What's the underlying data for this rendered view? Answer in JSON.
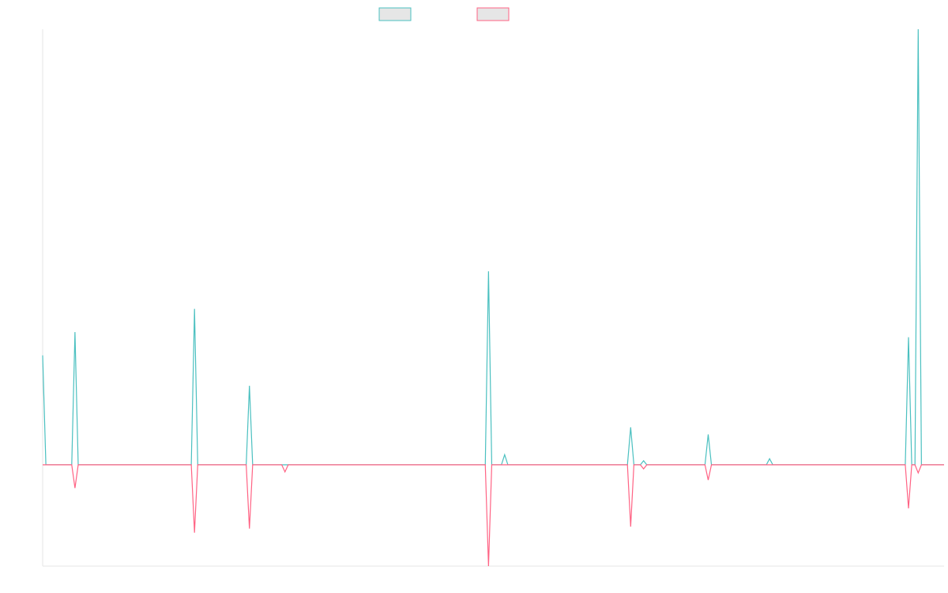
{
  "chart_data": {
    "type": "line",
    "title": "",
    "xlabel": "",
    "ylabel": "",
    "grid": false,
    "legend": "top-center",
    "x_count": 280,
    "ylim": [
      -1.0,
      4.3
    ],
    "series": [
      {
        "color": "#4bc0c0",
        "fill": "#e6e6e6",
        "points": [
          [
            0,
            1.08
          ],
          [
            1,
            0
          ],
          [
            9,
            0
          ],
          [
            10,
            1.31
          ],
          [
            11,
            0
          ],
          [
            46,
            0
          ],
          [
            47,
            1.54
          ],
          [
            48,
            0
          ],
          [
            63,
            0
          ],
          [
            64,
            0.78
          ],
          [
            65,
            0
          ],
          [
            74,
            0
          ],
          [
            75,
            0
          ],
          [
            76,
            0
          ],
          [
            137,
            0
          ],
          [
            138,
            1.91
          ],
          [
            139,
            0
          ],
          [
            142,
            0
          ],
          [
            143,
            0.1
          ],
          [
            144,
            0
          ],
          [
            181,
            0
          ],
          [
            182,
            0.37
          ],
          [
            183,
            0
          ],
          [
            185,
            0
          ],
          [
            186,
            0.04
          ],
          [
            187,
            0
          ],
          [
            205,
            0
          ],
          [
            206,
            0.3
          ],
          [
            207,
            0
          ],
          [
            224,
            0
          ],
          [
            225,
            0.06
          ],
          [
            226,
            0
          ],
          [
            267,
            0
          ],
          [
            268,
            1.26
          ],
          [
            269,
            0
          ],
          [
            270,
            0
          ],
          [
            271,
            4.3
          ],
          [
            272,
            0
          ],
          [
            279,
            0
          ]
        ]
      },
      {
        "color": "#ff6384",
        "fill": "#e6e6e6",
        "points": [
          [
            0,
            0
          ],
          [
            9,
            0
          ],
          [
            10,
            -0.23
          ],
          [
            11,
            0
          ],
          [
            46,
            0
          ],
          [
            47,
            -0.67
          ],
          [
            48,
            0
          ],
          [
            63,
            0
          ],
          [
            64,
            -0.63
          ],
          [
            65,
            0
          ],
          [
            74,
            0
          ],
          [
            75,
            -0.07
          ],
          [
            76,
            0
          ],
          [
            137,
            0
          ],
          [
            138,
            -1.0
          ],
          [
            139,
            0
          ],
          [
            142,
            0
          ],
          [
            143,
            0
          ],
          [
            144,
            0
          ],
          [
            181,
            0
          ],
          [
            182,
            -0.61
          ],
          [
            183,
            0
          ],
          [
            185,
            0
          ],
          [
            186,
            -0.04
          ],
          [
            187,
            0
          ],
          [
            205,
            0
          ],
          [
            206,
            -0.15
          ],
          [
            207,
            0
          ],
          [
            224,
            0
          ],
          [
            225,
            0
          ],
          [
            226,
            0
          ],
          [
            267,
            0
          ],
          [
            268,
            -0.43
          ],
          [
            269,
            0
          ],
          [
            270,
            0
          ],
          [
            271,
            -0.08
          ],
          [
            272,
            0
          ],
          [
            279,
            0
          ]
        ]
      }
    ]
  }
}
